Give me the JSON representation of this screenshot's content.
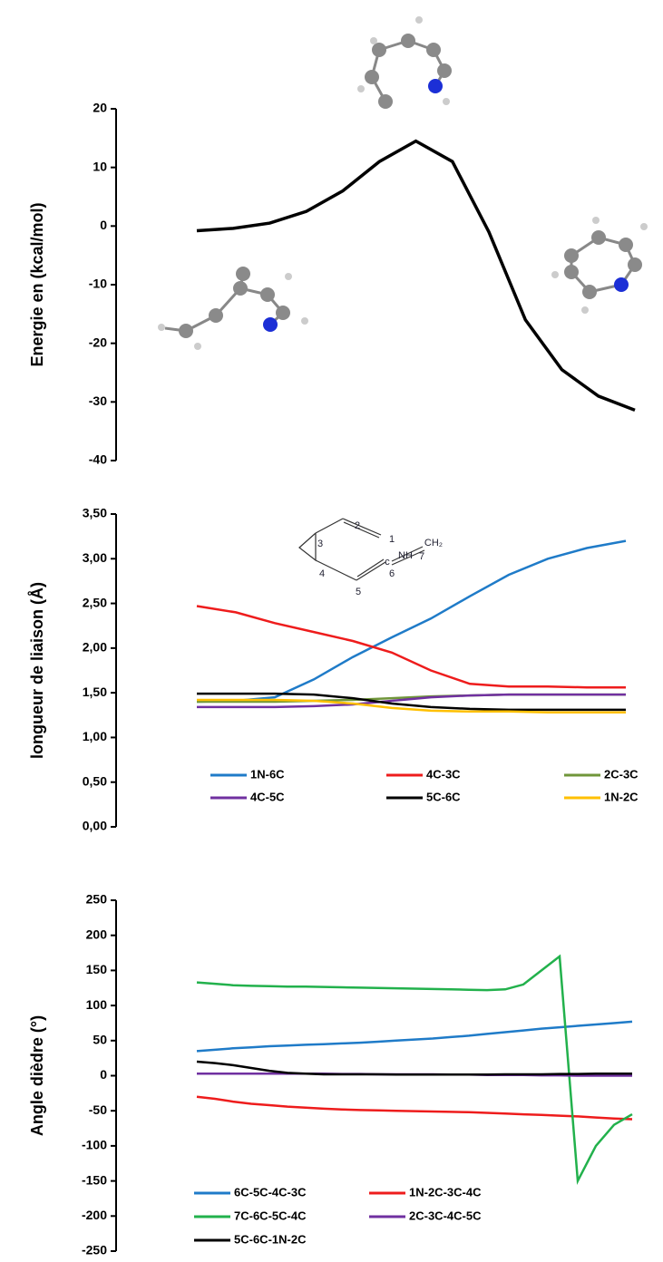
{
  "chart_data": [
    {
      "type": "line",
      "y_label": "Energie en (kcal/mol)",
      "color": "#000000",
      "values": [
        -0.8,
        -0.4,
        0.5,
        2.5,
        6,
        11,
        14.5,
        11,
        -1,
        -16,
        -24.5,
        -29,
        -31.4
      ],
      "ylim": [
        -40,
        20
      ],
      "yticks": [
        -40,
        -30,
        -20,
        -10,
        0,
        10,
        20
      ]
    },
    {
      "type": "line",
      "y_label": "longueur de liaison (Å)",
      "annotations": [
        "2",
        "1",
        "NH",
        "3",
        "CH₂",
        "7",
        "c",
        "4",
        "6",
        "5"
      ],
      "series": [
        {
          "name": "1N-6C",
          "color": "#1f7bc8",
          "values": [
            1.4,
            1.41,
            1.45,
            1.65,
            1.9,
            2.12,
            2.33,
            2.58,
            2.82,
            3.0,
            3.12,
            3.2
          ]
        },
        {
          "name": "4C-3C",
          "color": "#ee1c1c",
          "values": [
            2.47,
            2.4,
            2.28,
            2.18,
            2.08,
            1.95,
            1.75,
            1.6,
            1.57,
            1.57,
            1.56,
            1.56
          ]
        },
        {
          "name": "2C-3C",
          "color": "#70963a",
          "values": [
            1.4,
            1.4,
            1.4,
            1.41,
            1.42,
            1.44,
            1.46,
            1.47,
            1.48,
            1.48,
            1.48,
            1.48
          ]
        },
        {
          "name": "4C-5C",
          "color": "#7030a0",
          "values": [
            1.34,
            1.34,
            1.34,
            1.35,
            1.37,
            1.41,
            1.45,
            1.47,
            1.48,
            1.48,
            1.48,
            1.48
          ]
        },
        {
          "name": "5C-6C",
          "color": "#000000",
          "values": [
            1.49,
            1.49,
            1.49,
            1.48,
            1.44,
            1.38,
            1.34,
            1.32,
            1.31,
            1.31,
            1.31,
            1.31
          ]
        },
        {
          "name": "1N-2C",
          "color": "#ffc000",
          "values": [
            1.42,
            1.42,
            1.42,
            1.41,
            1.38,
            1.33,
            1.3,
            1.29,
            1.29,
            1.28,
            1.28,
            1.28
          ]
        }
      ],
      "ylim": [
        0,
        3.5
      ],
      "yticks": [
        {
          "value": 0,
          "label": "0,00"
        },
        {
          "value": 0.5,
          "label": "0,50"
        },
        {
          "value": 1,
          "label": "1,00"
        },
        {
          "value": 1.5,
          "label": "1,50"
        },
        {
          "value": 2,
          "label": "2,00"
        },
        {
          "value": 2.5,
          "label": "2,50"
        },
        {
          "value": 3,
          "label": "3,00"
        },
        {
          "value": 3.5,
          "label": "3,50"
        }
      ]
    },
    {
      "type": "line",
      "y_label": "Angle dièdre (°)",
      "series": [
        {
          "name": "6C-5C-4C-3C",
          "color": "#1f7bc8",
          "values": [
            35,
            37,
            39,
            40.5,
            42,
            43,
            44,
            45,
            46,
            47,
            48.5,
            50,
            51.5,
            53,
            55,
            57,
            59.5,
            62,
            64.5,
            67,
            69,
            71,
            73,
            75,
            77
          ]
        },
        {
          "name": "1N-2C-3C-4C",
          "color": "#ee1c1c",
          "values": [
            -30,
            -33,
            -37,
            -40,
            -42,
            -44,
            -45.5,
            -47,
            -48,
            -49,
            -49.5,
            -50,
            -50.5,
            -51,
            -51.5,
            -52,
            -53,
            -54,
            -55,
            -56,
            -57,
            -58,
            -59.5,
            -61,
            -62
          ]
        },
        {
          "name": "7C-6C-5C-4C",
          "color": "#22b14c",
          "values": [
            133,
            131,
            129,
            128,
            127.5,
            127,
            127,
            126.5,
            126,
            125.5,
            125,
            124.5,
            124,
            123.5,
            123,
            122.5,
            122,
            123,
            130,
            150,
            170,
            -150,
            -100,
            -70,
            -55
          ]
        },
        {
          "name": "2C-3C-4C-5C",
          "color": "#7030a0",
          "values": [
            3,
            3,
            3,
            3,
            3,
            3,
            3,
            3,
            2.5,
            2.5,
            2,
            2,
            2,
            2,
            1.5,
            1.5,
            1,
            1,
            1,
            0.5,
            0.5,
            0,
            0,
            0,
            0
          ]
        },
        {
          "name": "5C-6C-1N-2C",
          "color": "#000000",
          "values": [
            20,
            18,
            15,
            11,
            7,
            4,
            3,
            2,
            2,
            2,
            2,
            1.5,
            1.5,
            1.5,
            1.5,
            1.5,
            1.5,
            2,
            2,
            2,
            2.5,
            2.5,
            3,
            3,
            3
          ]
        }
      ],
      "ylim": [
        -250,
        250
      ],
      "yticks": [
        -250,
        -200,
        -150,
        -100,
        -50,
        0,
        50,
        100,
        150,
        200,
        250
      ]
    }
  ]
}
